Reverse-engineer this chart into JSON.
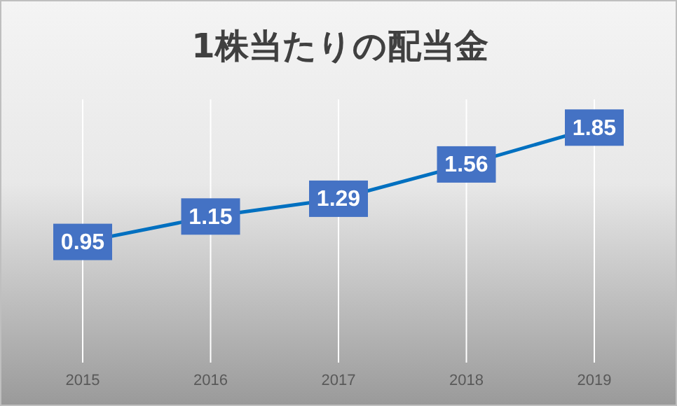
{
  "chart_data": {
    "type": "line",
    "title": "1株当たりの配当金",
    "categories": [
      "2015",
      "2016",
      "2017",
      "2018",
      "2019"
    ],
    "series": [
      {
        "color": "#0070c0",
        "values": [
          0.95,
          1.15,
          1.29,
          1.56,
          1.85
        ]
      }
    ],
    "data_labels": true,
    "grid": "x",
    "marker": "square",
    "line_style": "solid"
  }
}
